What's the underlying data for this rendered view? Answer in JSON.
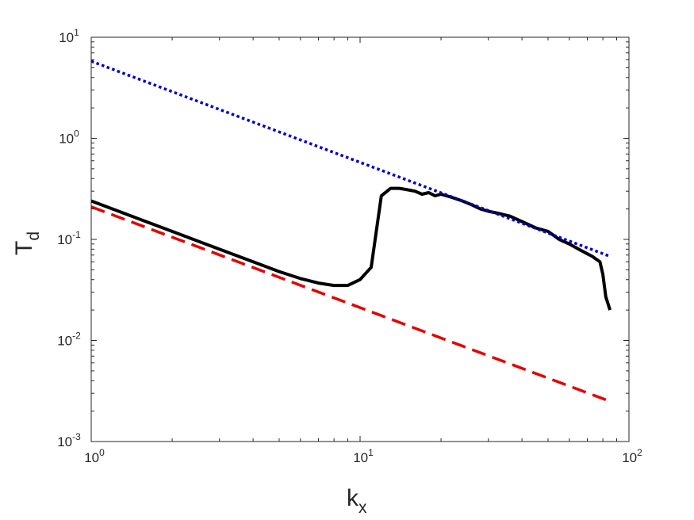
{
  "chart_data": {
    "type": "line",
    "xscale": "log",
    "yscale": "log",
    "xlim": [
      1,
      100
    ],
    "ylim": [
      0.001,
      10
    ],
    "grid": false,
    "legend": "none",
    "xlabel": {
      "base": "k",
      "sub": "x"
    },
    "ylabel": {
      "base": "T",
      "sub": "d"
    },
    "xticks": [
      {
        "value": 1,
        "base": "10",
        "exp": "0"
      },
      {
        "value": 10,
        "base": "10",
        "exp": "1"
      },
      {
        "value": 100,
        "base": "10",
        "exp": "2"
      }
    ],
    "yticks": [
      {
        "value": 0.001,
        "base": "10",
        "exp": "-3"
      },
      {
        "value": 0.01,
        "base": "10",
        "exp": "-2"
      },
      {
        "value": 0.1,
        "base": "10",
        "exp": "-1"
      },
      {
        "value": 1,
        "base": "10",
        "exp": "0"
      },
      {
        "value": 10,
        "base": "10",
        "exp": "1"
      }
    ],
    "series": [
      {
        "style": "solid",
        "color": "#000000",
        "x": [
          1,
          1.5,
          2,
          3,
          4,
          5,
          6,
          7,
          8,
          9,
          10,
          11,
          12,
          13,
          14,
          15,
          16,
          17,
          18,
          19,
          20,
          22,
          24,
          26,
          28,
          30,
          33,
          36,
          40,
          45,
          50,
          55,
          60,
          65,
          70,
          73,
          76,
          78,
          80,
          82,
          85
        ],
        "y": [
          0.24,
          0.16,
          0.12,
          0.08,
          0.06,
          0.048,
          0.041,
          0.037,
          0.035,
          0.035,
          0.04,
          0.053,
          0.27,
          0.32,
          0.32,
          0.31,
          0.3,
          0.28,
          0.29,
          0.27,
          0.28,
          0.26,
          0.24,
          0.22,
          0.2,
          0.19,
          0.18,
          0.17,
          0.15,
          0.13,
          0.12,
          0.1,
          0.09,
          0.08,
          0.072,
          0.068,
          0.063,
          0.06,
          0.045,
          0.027,
          0.02
        ]
      },
      {
        "style": "dashed",
        "color": "#e60000",
        "x": [
          1,
          85
        ],
        "y": [
          0.21,
          0.0025
        ]
      },
      {
        "style": "dotted",
        "color": "#0000cc",
        "x": [
          1,
          85
        ],
        "y": [
          5.8,
          0.068
        ]
      }
    ]
  }
}
